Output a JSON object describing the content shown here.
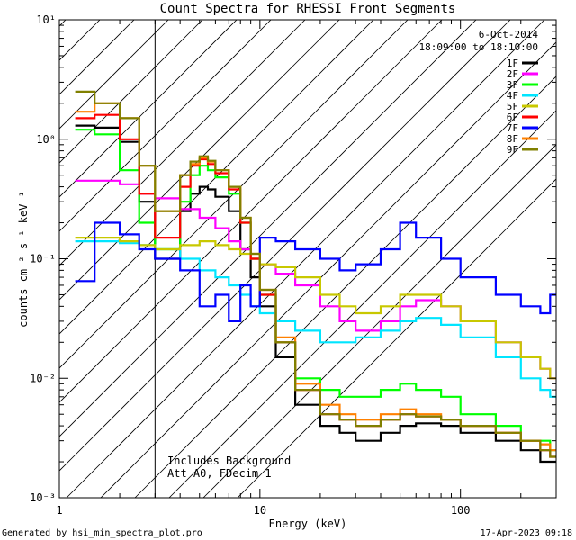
{
  "chart_data": {
    "type": "line",
    "title": "Count Spectra for RHESSI Front Segments",
    "xlabel": "Energy (keV)",
    "ylabel": "counts cm⁻² s⁻¹ keV⁻¹",
    "xscale": "log",
    "yscale": "log",
    "xlim": [
      1,
      300
    ],
    "ylim": [
      0.001,
      10
    ],
    "x_ticks": [
      {
        "value": 1,
        "label": "1"
      },
      {
        "value": 10,
        "label": "10"
      },
      {
        "value": 100,
        "label": "100"
      }
    ],
    "y_ticks": [
      {
        "value": 0.001,
        "label": "10⁻³"
      },
      {
        "value": 0.01,
        "label": "10⁻²"
      },
      {
        "value": 0.1,
        "label": "10⁻¹"
      },
      {
        "value": 1,
        "label": "10⁰"
      },
      {
        "value": 10,
        "label": "10¹"
      }
    ],
    "legend_header": [
      "6-Oct-2014",
      "18:09:00 to 18:10:00"
    ],
    "legend_position": "top-right",
    "excluded_region": {
      "x_from": 1,
      "x_to": 3
    },
    "annotations": [
      "Includes Background",
      "Att A0, FDecim 1"
    ],
    "series": [
      {
        "name": "1F",
        "color": "#000000",
        "x": [
          1.2,
          1.5,
          2,
          2.5,
          3,
          4,
          4.5,
          5,
          5.5,
          6,
          7,
          8,
          9,
          10,
          12,
          15,
          20,
          25,
          30,
          40,
          50,
          60,
          80,
          100,
          150,
          200,
          250,
          280
        ],
        "y": [
          1.3,
          1.25,
          0.95,
          0.3,
          0.1,
          0.25,
          0.35,
          0.4,
          0.38,
          0.33,
          0.25,
          0.12,
          0.07,
          0.04,
          0.015,
          0.006,
          0.004,
          0.0035,
          0.003,
          0.0035,
          0.004,
          0.0042,
          0.004,
          0.0035,
          0.003,
          0.0025,
          0.002,
          0.002
        ]
      },
      {
        "name": "2F",
        "color": "#ff00ff",
        "x": [
          1.2,
          1.5,
          2,
          2.5,
          3,
          4,
          5,
          6,
          7,
          8,
          9,
          10,
          12,
          15,
          20,
          25,
          30,
          40,
          50,
          60,
          80,
          100,
          150,
          200,
          250,
          280
        ],
        "y": [
          0.45,
          0.45,
          0.42,
          0.35,
          0.32,
          0.26,
          0.22,
          0.18,
          0.14,
          0.12,
          0.1,
          0.09,
          0.075,
          0.06,
          0.04,
          0.03,
          0.025,
          0.03,
          0.04,
          0.045,
          0.04,
          0.03,
          0.02,
          0.015,
          0.012,
          0.01
        ]
      },
      {
        "name": "3F",
        "color": "#00ff00",
        "x": [
          1.2,
          1.5,
          2,
          2.5,
          3,
          4,
          4.5,
          5,
          5.5,
          6,
          7,
          8,
          9,
          10,
          12,
          15,
          20,
          25,
          30,
          40,
          50,
          60,
          80,
          100,
          150,
          200,
          250,
          280
        ],
        "y": [
          1.2,
          1.1,
          0.55,
          0.2,
          0.12,
          0.3,
          0.5,
          0.6,
          0.55,
          0.48,
          0.35,
          0.2,
          0.1,
          0.05,
          0.02,
          0.01,
          0.008,
          0.007,
          0.007,
          0.008,
          0.009,
          0.008,
          0.007,
          0.005,
          0.004,
          0.003,
          0.003,
          0.0025
        ]
      },
      {
        "name": "4F",
        "color": "#00e5ff",
        "x": [
          1.2,
          1.5,
          2,
          2.5,
          3,
          4,
          5,
          6,
          7,
          8,
          9,
          10,
          12,
          15,
          20,
          25,
          30,
          40,
          50,
          60,
          80,
          100,
          150,
          200,
          250,
          280
        ],
        "y": [
          0.14,
          0.14,
          0.135,
          0.13,
          0.12,
          0.1,
          0.08,
          0.07,
          0.06,
          0.05,
          0.04,
          0.035,
          0.03,
          0.025,
          0.02,
          0.02,
          0.022,
          0.025,
          0.03,
          0.032,
          0.028,
          0.022,
          0.015,
          0.01,
          0.008,
          0.007
        ]
      },
      {
        "name": "5F",
        "color": "#c8c800",
        "x": [
          1.2,
          1.5,
          2,
          2.5,
          3,
          4,
          5,
          6,
          7,
          8,
          9,
          10,
          12,
          15,
          20,
          25,
          30,
          40,
          50,
          60,
          80,
          100,
          150,
          200,
          250,
          280
        ],
        "y": [
          0.15,
          0.15,
          0.14,
          0.13,
          0.12,
          0.13,
          0.14,
          0.13,
          0.12,
          0.11,
          0.1,
          0.09,
          0.085,
          0.07,
          0.05,
          0.04,
          0.035,
          0.04,
          0.05,
          0.05,
          0.04,
          0.03,
          0.02,
          0.015,
          0.012,
          0.01
        ]
      },
      {
        "name": "6F",
        "color": "#ff0000",
        "x": [
          1.2,
          1.5,
          2,
          2.5,
          3,
          4,
          4.5,
          5,
          5.5,
          6,
          7,
          8,
          9,
          10,
          12,
          15,
          20,
          25,
          30,
          40,
          50,
          60,
          80,
          100,
          150,
          200,
          250,
          280
        ],
        "y": [
          1.5,
          1.6,
          1.0,
          0.35,
          0.15,
          0.4,
          0.6,
          0.68,
          0.62,
          0.52,
          0.38,
          0.2,
          0.1,
          0.05,
          0.02,
          0.008,
          0.005,
          0.0045,
          0.004,
          0.0045,
          0.005,
          0.0048,
          0.0045,
          0.004,
          0.0035,
          0.003,
          0.0025,
          0.0022
        ]
      },
      {
        "name": "7F",
        "color": "#0000ff",
        "x": [
          1.2,
          1.5,
          2,
          2.5,
          3,
          4,
          5,
          6,
          7,
          8,
          9,
          10,
          12,
          15,
          20,
          25,
          30,
          40,
          50,
          60,
          80,
          100,
          150,
          200,
          250,
          280
        ],
        "y": [
          0.065,
          0.2,
          0.16,
          0.12,
          0.1,
          0.08,
          0.04,
          0.05,
          0.03,
          0.06,
          0.04,
          0.15,
          0.14,
          0.12,
          0.1,
          0.08,
          0.09,
          0.12,
          0.2,
          0.15,
          0.1,
          0.07,
          0.05,
          0.04,
          0.035,
          0.05
        ]
      },
      {
        "name": "8F",
        "color": "#ff8000",
        "x": [
          1.2,
          1.5,
          2,
          2.5,
          3,
          4,
          4.5,
          5,
          5.5,
          6,
          7,
          8,
          9,
          10,
          12,
          15,
          20,
          25,
          30,
          40,
          50,
          60,
          80,
          100,
          150,
          200,
          250,
          280
        ],
        "y": [
          1.7,
          2.0,
          1.5,
          0.6,
          0.25,
          0.5,
          0.62,
          0.7,
          0.65,
          0.55,
          0.4,
          0.22,
          0.11,
          0.055,
          0.022,
          0.009,
          0.006,
          0.005,
          0.0045,
          0.005,
          0.0055,
          0.005,
          0.0045,
          0.004,
          0.0035,
          0.003,
          0.0028,
          0.0025
        ]
      },
      {
        "name": "9F",
        "color": "#808000",
        "x": [
          1.2,
          1.5,
          2,
          2.5,
          3,
          4,
          4.5,
          5,
          5.5,
          6,
          7,
          8,
          9,
          10,
          12,
          15,
          20,
          25,
          30,
          40,
          50,
          60,
          80,
          100,
          150,
          200,
          250,
          280
        ],
        "y": [
          2.5,
          2.0,
          1.5,
          0.6,
          0.25,
          0.5,
          0.65,
          0.72,
          0.66,
          0.55,
          0.4,
          0.22,
          0.11,
          0.055,
          0.02,
          0.008,
          0.005,
          0.0045,
          0.004,
          0.0045,
          0.005,
          0.0048,
          0.0045,
          0.004,
          0.0035,
          0.003,
          0.0025,
          0.0022
        ]
      }
    ]
  },
  "footer": {
    "generator": "Generated by hsi_min_spectra_plot.pro",
    "timestamp": "17-Apr-2023 09:18"
  }
}
